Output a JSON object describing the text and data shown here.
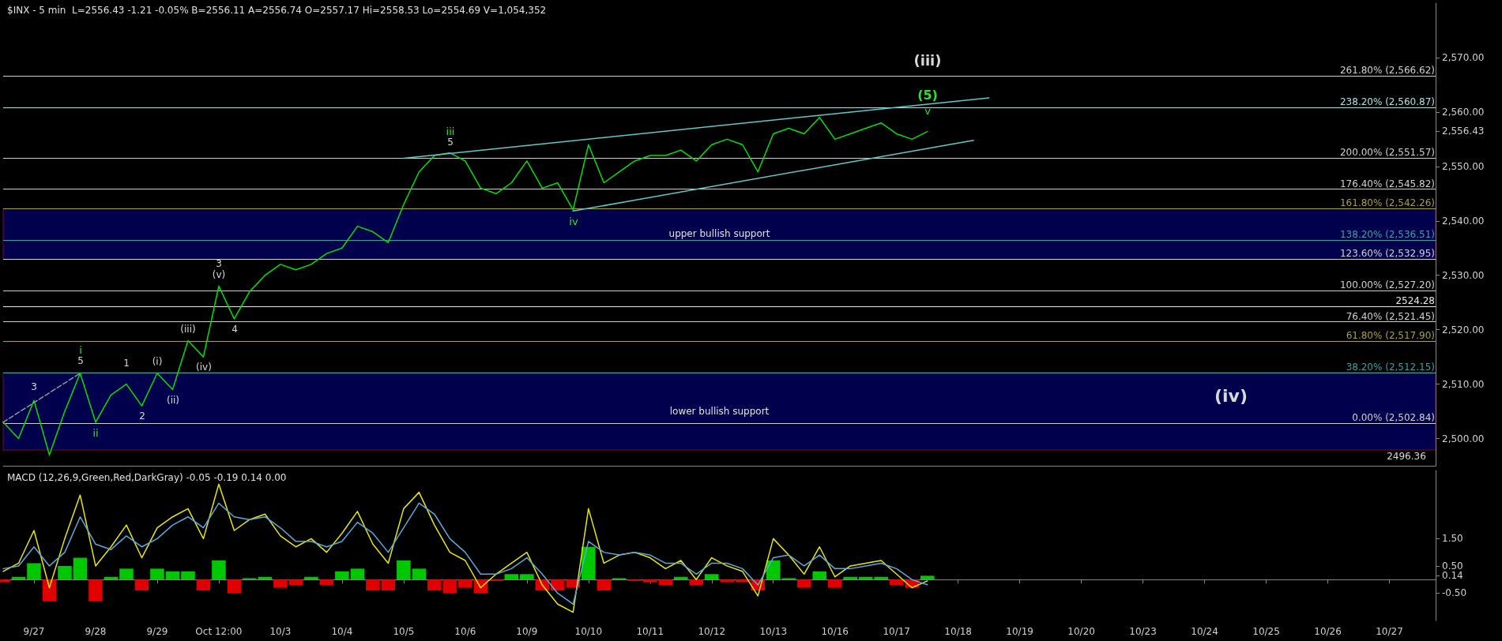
{
  "chart_data": [
    {
      "type": "line",
      "title": "$INX - 5 min  L=2556.43 -1.21 -0.05% B=2556.11 A=2556.74 O=2557.17 Hi=2558.53 Lo=2554.69 V=1,054,352",
      "categories": [
        null,
        null,
        null,
        null,
        null,
        null,
        null,
        null,
        null,
        null,
        null,
        null,
        null,
        null,
        null,
        null,
        null,
        null,
        null,
        null,
        null,
        null,
        null,
        null,
        null,
        null,
        null,
        null,
        null,
        null,
        null,
        null,
        null,
        null,
        null,
        null,
        null,
        null,
        null,
        null,
        null,
        null,
        null,
        null,
        null,
        null,
        null,
        null,
        null,
        null,
        null,
        null,
        null,
        null,
        null,
        null,
        null,
        null,
        null,
        null,
        null,
        null,
        null,
        null,
        null,
        null,
        null,
        null,
        null,
        null,
        null,
        null,
        null,
        null,
        null,
        null,
        null,
        null,
        null,
        null,
        null,
        null,
        null,
        null,
        null,
        null,
        null,
        null,
        null,
        null,
        null,
        null,
        null,
        null
      ],
      "ylim": [
        2495,
        2580
      ],
      "yticks": [
        {
          "value": 2500,
          "label": "2,500.00"
        },
        {
          "value": 2510,
          "label": "2,510.00"
        },
        {
          "value": 2520,
          "label": "2,520.00"
        },
        {
          "value": 2530,
          "label": "2,530.00"
        },
        {
          "value": 2540,
          "label": "2,540.00"
        },
        {
          "value": 2550,
          "label": "2,550.00"
        },
        {
          "value": 2556.43,
          "label": "2,556.43"
        },
        {
          "value": 2560,
          "label": "2,560.00"
        },
        {
          "value": 2570,
          "label": "2,570.00"
        }
      ],
      "tick_labels": "y",
      "grid": false,
      "marker": "none",
      "series": [
        {
          "color": "#00e000",
          "values": [
            2503,
            2500,
            2507,
            2497,
            2505,
            2512,
            2503,
            2508,
            2510,
            2506,
            2512,
            2509,
            2518,
            2515,
            2528,
            2522,
            2527,
            2530,
            2532,
            2531,
            2532,
            2534,
            2535,
            2539,
            2538,
            2536,
            2543,
            2549,
            2552,
            2552.5,
            2551,
            2546,
            2545,
            2547,
            2551,
            2546,
            2547,
            2542,
            2554,
            2547,
            2549,
            2551,
            2552,
            2552,
            2553,
            2551,
            2554,
            2555,
            2554,
            2549,
            2556,
            2557,
            2556,
            2559,
            2555,
            2556,
            2557,
            2558,
            2556,
            2555,
            2556.4,
            null,
            null,
            null,
            null,
            null,
            null,
            null,
            null,
            null,
            null,
            null,
            null,
            null,
            null,
            null,
            null,
            null,
            null,
            null,
            null,
            null,
            null,
            null,
            null,
            null,
            null,
            null,
            null,
            null,
            null,
            null,
            null,
            null
          ],
          "line_style": "solid"
        },
        {
          "color": "#5fc8c8",
          "values": [
            null,
            null,
            null,
            null,
            null,
            null,
            null,
            null,
            null,
            null,
            null,
            null,
            null,
            null,
            null,
            null,
            null,
            null,
            null,
            null,
            null,
            null,
            null,
            null,
            null,
            null,
            2551.5,
            null,
            null,
            null,
            null,
            null,
            null,
            null,
            null,
            null,
            null,
            null,
            null,
            null,
            null,
            null,
            null,
            null,
            null,
            null,
            null,
            null,
            null,
            null,
            null,
            null,
            null,
            null,
            null,
            null,
            null,
            null,
            null,
            null,
            null,
            null,
            null,
            null,
            2562.6,
            null,
            null,
            null,
            null,
            null,
            null,
            null,
            null,
            null,
            null,
            null,
            null,
            null,
            null,
            null,
            null,
            null,
            null,
            null,
            null,
            null,
            null,
            null,
            null,
            null,
            null,
            null,
            null,
            null
          ]
        },
        {
          "color": "#5fc8c8",
          "values": [
            null,
            null,
            null,
            null,
            null,
            null,
            null,
            null,
            null,
            null,
            null,
            null,
            null,
            null,
            null,
            null,
            null,
            null,
            null,
            null,
            null,
            null,
            null,
            null,
            null,
            null,
            null,
            null,
            null,
            null,
            null,
            null,
            null,
            null,
            null,
            null,
            null,
            2541.8,
            null,
            null,
            null,
            null,
            null,
            null,
            null,
            null,
            null,
            null,
            null,
            null,
            null,
            null,
            null,
            null,
            null,
            null,
            null,
            null,
            null,
            null,
            null,
            null,
            null,
            2554.8,
            null,
            null,
            null,
            null,
            null,
            null,
            null,
            null,
            null,
            null,
            null,
            null,
            null,
            null,
            null,
            null,
            null,
            null,
            null,
            null,
            null,
            null,
            null,
            null,
            null,
            null,
            null,
            null,
            null,
            null
          ]
        },
        {
          "color": "#999999",
          "line_style": "dashed",
          "values": [
            2503,
            null,
            null,
            null,
            null,
            2512,
            null,
            null,
            null,
            null,
            null,
            null,
            null,
            null,
            null,
            null,
            null,
            null,
            null,
            null,
            null,
            null,
            null,
            null,
            null,
            null,
            null,
            null,
            null,
            null,
            null,
            null,
            null,
            null,
            null,
            null,
            null,
            null,
            null,
            null,
            null,
            null,
            null,
            null,
            null,
            null,
            null,
            null,
            null,
            null,
            null,
            null,
            null,
            null,
            null,
            null,
            null,
            null,
            null,
            null,
            null,
            null,
            null,
            null,
            null,
            null,
            null,
            null,
            null,
            null,
            null,
            null,
            null,
            null,
            null,
            null,
            null,
            null,
            null,
            null,
            null,
            null,
            null,
            null,
            null,
            null,
            null,
            null,
            null,
            null,
            null,
            null,
            null,
            null
          ]
        }
      ],
      "ref_lines": [
        {
          "axis": "y",
          "value": 2566.62,
          "label": "261.80% (2,566.62)",
          "color": "#d0d0d0"
        },
        {
          "axis": "y",
          "value": 2560.87,
          "label": "238.20% (2,560.87)",
          "color": "#a8e0e0"
        },
        {
          "axis": "y",
          "value": 2551.57,
          "label": "200.00% (2,551.57)",
          "color": "#d0d0d0"
        },
        {
          "axis": "y",
          "value": 2545.82,
          "label": "176.40% (2,545.82)",
          "color": "#d0d0d0"
        },
        {
          "axis": "y",
          "value": 2542.26,
          "label": "161.80% (2,542.26)",
          "color": "#a8a040"
        },
        {
          "axis": "y",
          "value": 2536.51,
          "label": "138.20% (2,536.51)",
          "color": "#3aa0a0"
        },
        {
          "axis": "y",
          "value": 2532.95,
          "label": "123.60% (2,532.95)",
          "color": "#d0d0d0"
        },
        {
          "axis": "y",
          "value": 2527.2,
          "label": "100.00% (2,527.20)",
          "color": "#d0d0d0"
        },
        {
          "axis": "y",
          "value": 2524.28,
          "label": "2524.28",
          "color": "#e8e8e8"
        },
        {
          "axis": "y",
          "value": 2521.45,
          "label": "76.40% (2,521.45)",
          "color": "#d0d0d0"
        },
        {
          "axis": "y",
          "value": 2517.9,
          "label": "61.80% (2,517.90)",
          "color": "#a8a040"
        },
        {
          "axis": "y",
          "value": 2512.15,
          "label": "38.20% (2,512.15)",
          "color": "#3aa0a0"
        },
        {
          "axis": "y",
          "value": 2502.84,
          "label": "0.00% (2,502.84)",
          "color": "#d0d0d0"
        }
      ],
      "bands": [
        {
          "axis": "y",
          "from": 2532.95,
          "to": 2542.26,
          "label": "upper bullish support",
          "color": "#00007f"
        },
        {
          "axis": "y",
          "from": 2497.9,
          "to": 2512.15,
          "label": "lower bullish support",
          "color": "#00007f"
        }
      ],
      "annotations": [
        "3",
        "i",
        "5",
        "ii",
        "1",
        "(i)",
        "2",
        "(ii)",
        "(iii)",
        "(iv)",
        "3",
        "(v)",
        "4",
        "iii",
        "5",
        "iv",
        "(iii)",
        "(5)",
        "v",
        "(iv)",
        "2496.36"
      ]
    },
    {
      "type": "line",
      "title": "MACD (12,26,9,Green,Red,DarkGray) -0.05 -0.19 0.14 0.00",
      "categories": [
        null,
        null,
        "9/27",
        null,
        null,
        null,
        "9/28",
        null,
        null,
        null,
        "9/29",
        null,
        null,
        null,
        "Oct 12:00",
        null,
        null,
        null,
        "10/3",
        null,
        null,
        null,
        "10/4",
        null,
        null,
        null,
        "10/5",
        null,
        null,
        null,
        "10/6",
        null,
        null,
        null,
        "10/9",
        null,
        null,
        null,
        "10/10",
        null,
        null,
        null,
        "10/11",
        null,
        null,
        null,
        "10/12",
        null,
        null,
        null,
        "10/13",
        null,
        null,
        null,
        "10/16",
        null,
        null,
        null,
        "10/17",
        null,
        null,
        null,
        "10/18",
        null,
        null,
        null,
        "10/19",
        null,
        null,
        null,
        "10/20",
        null,
        null,
        null,
        "10/23",
        null,
        null,
        null,
        "10/24",
        null,
        null,
        null,
        "10/25",
        null,
        null,
        null,
        "10/26",
        null,
        null,
        null,
        "10/27",
        null,
        null,
        null
      ],
      "ylim": [
        -1.5,
        4
      ],
      "yticks": [
        {
          "value": 1.5,
          "label": "1.50"
        },
        {
          "value": 0.5,
          "label": "0.50"
        },
        {
          "value": 0.14,
          "label": "0.14"
        },
        {
          "value": -0.5,
          "label": "-0.50"
        }
      ],
      "grid": false,
      "series": [
        {
          "type": "bar",
          "color": "#00c800",
          "values": [
            -0.1,
            0.1,
            0.6,
            -0.8,
            0.5,
            0.8,
            -0.8,
            0.1,
            0.4,
            -0.4,
            0.4,
            0.3,
            0.3,
            -0.4,
            0.7,
            -0.5,
            0.05,
            0.1,
            -0.3,
            -0.2,
            0.1,
            -0.2,
            0.3,
            0.4,
            -0.4,
            -0.4,
            0.7,
            0.4,
            -0.4,
            -0.5,
            -0.3,
            -0.5,
            -0.05,
            0.2,
            0.2,
            -0.4,
            -0.4,
            -0.3,
            1.2,
            -0.4,
            0.05,
            -0.05,
            -0.1,
            -0.2,
            0.1,
            -0.2,
            0.2,
            -0.1,
            -0.1,
            -0.4,
            0.7,
            0.05,
            -0.3,
            0.3,
            -0.3,
            0.1,
            0.1,
            0.1,
            -0.2,
            -0.3,
            0.14,
            null,
            null,
            null,
            null,
            null,
            null,
            null,
            null,
            null,
            null,
            null,
            null,
            null,
            null,
            null,
            null,
            null,
            null,
            null,
            null,
            null,
            null,
            null,
            null,
            null,
            null,
            null,
            null,
            null,
            null,
            null,
            null,
            null
          ],
          "colors": [
            "#e00000",
            "#00c800",
            "#00c800",
            "#e00000",
            "#00c800",
            "#00c800",
            "#e00000",
            "#00c800",
            "#00c800",
            "#e00000",
            "#00c800",
            "#00c800",
            "#00c800",
            "#e00000",
            "#00c800",
            "#e00000",
            "#00c800",
            "#00c800",
            "#e00000",
            "#e00000",
            "#00c800",
            "#e00000",
            "#00c800",
            "#00c800",
            "#e00000",
            "#e00000",
            "#00c800",
            "#00c800",
            "#e00000",
            "#e00000",
            "#e00000",
            "#e00000",
            "#e00000",
            "#00c800",
            "#00c800",
            "#e00000",
            "#e00000",
            "#e00000",
            "#00c800",
            "#e00000",
            "#00c800",
            "#e00000",
            "#e00000",
            "#e00000",
            "#00c800",
            "#e00000",
            "#00c800",
            "#e00000",
            "#e00000",
            "#e00000",
            "#00c800",
            "#00c800",
            "#e00000",
            "#00c800",
            "#e00000",
            "#00c800",
            "#00c800",
            "#00c800",
            "#e00000",
            "#e00000",
            "#00c800",
            null,
            null,
            null,
            null,
            null,
            null,
            null,
            null,
            null,
            null,
            null,
            null,
            null,
            null,
            null,
            null,
            null,
            null,
            null,
            null,
            null,
            null,
            null,
            null,
            null,
            null,
            null,
            null,
            null,
            null,
            null,
            null,
            null
          ]
        },
        {
          "color": "#e8e800",
          "values": [
            0.3,
            0.6,
            1.8,
            -0.3,
            1.5,
            3.1,
            0.5,
            1.2,
            2.0,
            0.8,
            1.9,
            2.3,
            2.6,
            1.5,
            3.5,
            1.8,
            2.2,
            2.4,
            1.6,
            1.2,
            1.5,
            1.0,
            1.7,
            2.5,
            1.3,
            0.6,
            2.6,
            3.2,
            2.0,
            1.0,
            0.7,
            -0.3,
            0.2,
            0.6,
            1.0,
            -0.2,
            -0.9,
            -1.2,
            2.6,
            0.6,
            0.9,
            1.0,
            0.8,
            0.4,
            0.7,
            0.0,
            0.8,
            0.5,
            0.3,
            -0.6,
            1.5,
            0.9,
            0.2,
            1.2,
            0.1,
            0.5,
            0.6,
            0.7,
            0.2,
            -0.3,
            -0.05,
            null,
            null,
            null,
            null,
            null,
            null,
            null,
            null,
            null,
            null,
            null,
            null,
            null,
            null,
            null,
            null,
            null,
            null,
            null,
            null,
            null,
            null,
            null,
            null,
            null,
            null,
            null,
            null,
            null,
            null,
            null,
            null,
            null
          ]
        },
        {
          "color": "#5aaad8",
          "values": [
            0.4,
            0.5,
            1.2,
            0.5,
            1.0,
            2.3,
            1.3,
            1.1,
            1.6,
            1.2,
            1.5,
            2.0,
            2.3,
            1.9,
            2.8,
            2.3,
            2.2,
            2.3,
            1.9,
            1.4,
            1.4,
            1.2,
            1.4,
            2.1,
            1.7,
            1.0,
            1.9,
            2.8,
            2.4,
            1.5,
            1.0,
            0.2,
            0.2,
            0.4,
            0.8,
            0.2,
            -0.5,
            -0.9,
            1.4,
            1.0,
            0.9,
            1.0,
            0.9,
            0.6,
            0.6,
            0.2,
            0.6,
            0.6,
            0.4,
            -0.2,
            0.8,
            0.9,
            0.5,
            0.9,
            0.4,
            0.4,
            0.5,
            0.6,
            0.4,
            0.0,
            -0.19,
            null,
            null,
            null,
            null,
            null,
            null,
            null,
            null,
            null,
            null,
            null,
            null,
            null,
            null,
            null,
            null,
            null,
            null,
            null,
            null,
            null,
            null,
            null,
            null,
            null,
            null,
            null,
            null,
            null,
            null,
            null,
            null,
            null
          ]
        }
      ],
      "marker": "none"
    }
  ]
}
